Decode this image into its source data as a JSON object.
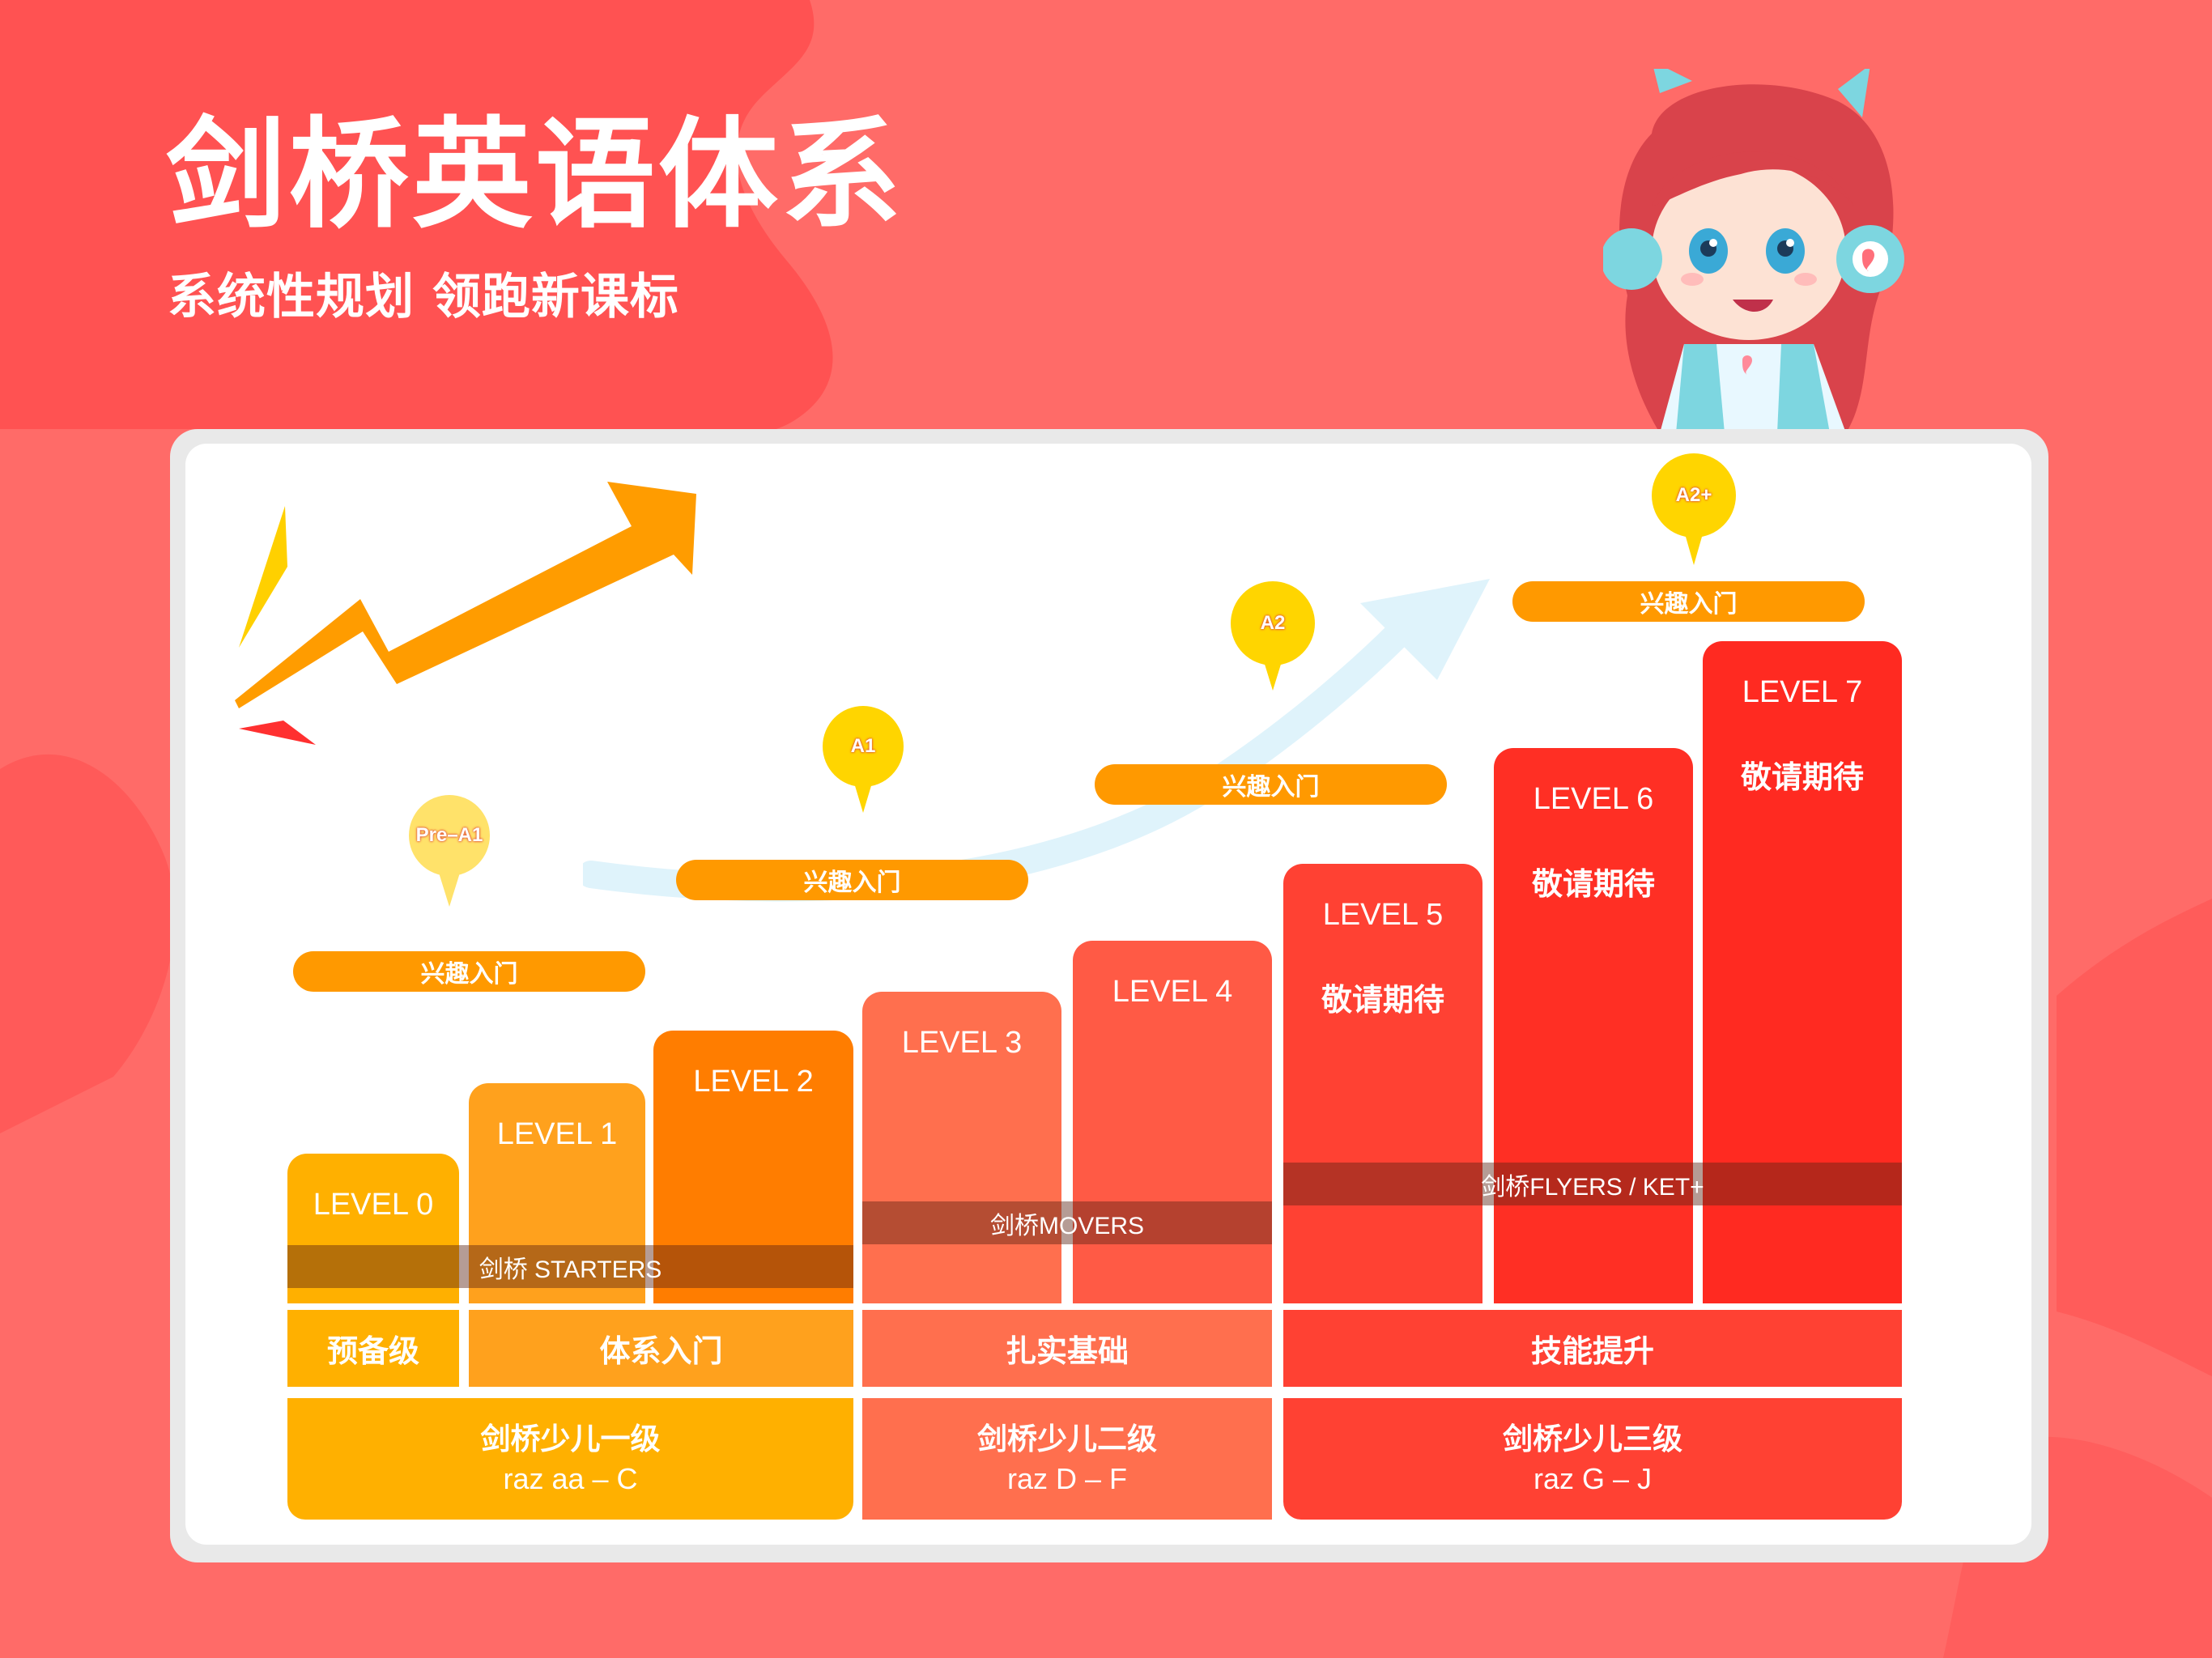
{
  "header": {
    "title": "剑桥英语体系",
    "subtitle": "系统性规划 领跑新课标"
  },
  "colors": {
    "background": "#ff6b68",
    "level0": "#ffb000",
    "level1": "#ffa11d",
    "level2": "#ff7d00",
    "level3": "#ff6f4e",
    "level4": "#ff5a45",
    "level5": "#ff4133",
    "level6": "#ff2f24",
    "level7": "#ff2a21",
    "pill": "#ff9900",
    "pin": "#ffd500"
  },
  "levels": [
    {
      "label": "LEVEL 0",
      "note": ""
    },
    {
      "label": "LEVEL 1",
      "note": ""
    },
    {
      "label": "LEVEL 2",
      "note": ""
    },
    {
      "label": "LEVEL 3",
      "note": ""
    },
    {
      "label": "LEVEL 4",
      "note": ""
    },
    {
      "label": "LEVEL 5",
      "note": "敬请期待"
    },
    {
      "label": "LEVEL 6",
      "note": "敬请期待"
    },
    {
      "label": "LEVEL 7",
      "note": "敬请期待"
    }
  ],
  "bands": {
    "starters": "剑桥 STARTERS",
    "movers": "剑桥MOVERS",
    "flyers": "剑桥FLYERS / KET+"
  },
  "stages": [
    "预备级",
    "体系入门",
    "扎实基础",
    "技能提升"
  ],
  "groups": [
    {
      "title": "剑桥少儿一级",
      "sub": "raz aa – C"
    },
    {
      "title": "剑桥少儿二级",
      "sub": "raz D – F"
    },
    {
      "title": "剑桥少儿三级",
      "sub": "raz G – J"
    }
  ],
  "pills": [
    "兴趣入门",
    "兴趣入门",
    "兴趣入门",
    "兴趣入门"
  ],
  "pins": [
    "Pre–A1",
    "A1",
    "A2",
    "A2+"
  ]
}
